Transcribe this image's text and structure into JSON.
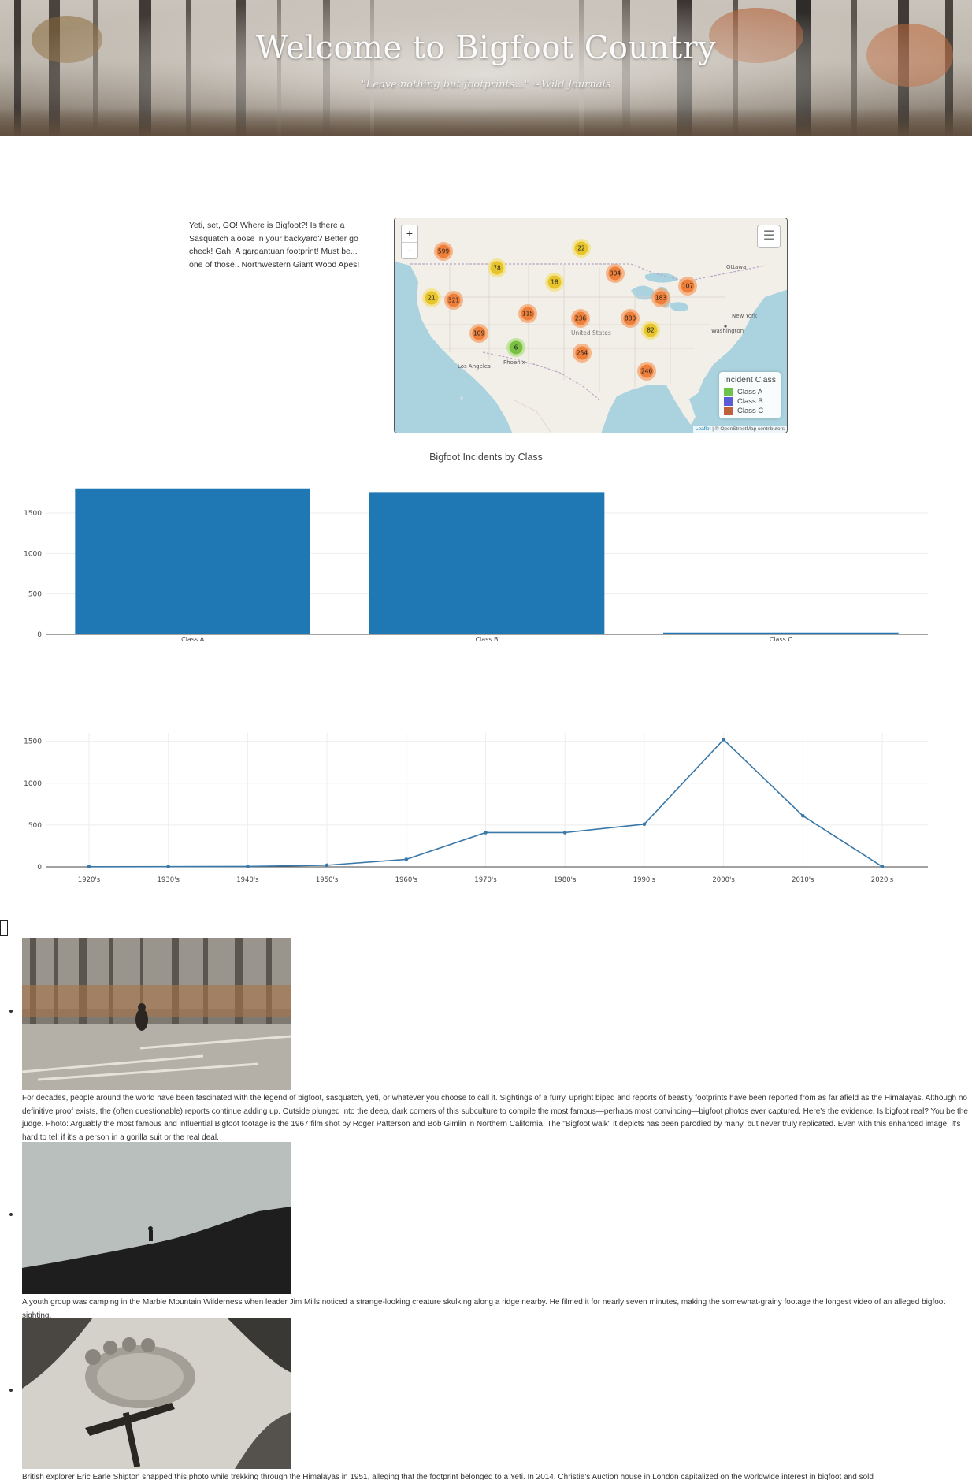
{
  "banner": {
    "title": "Welcome to Bigfoot Country",
    "subtitle": "\"Leave nothing but footprints...\" ~Wild Journals"
  },
  "intro": {
    "text": "Yeti, set, GO! Where is Bigfoot?! Is there a Sasquatch aloose in your backyard? Better go check! Gah! A gargantuan footprint! Must be... one of those.. Northwestern Giant Wood Apes!"
  },
  "map": {
    "zoom_in": "+",
    "zoom_out": "−",
    "layers_icon": "layers-icon",
    "legend": {
      "title": "Incident Class",
      "items": [
        {
          "label": "Class A",
          "color": "#6cc24a"
        },
        {
          "label": "Class B",
          "color": "#5b5bd6"
        },
        {
          "label": "Class C",
          "color": "#c0603a"
        }
      ]
    },
    "attribution_leaflet": "Leaflet",
    "attribution_osm": "| © OpenStreetMap contributors",
    "place_labels": [
      {
        "name": "Ottawa"
      },
      {
        "name": "New York"
      },
      {
        "name": "Washington"
      },
      {
        "name": "United States"
      },
      {
        "name": "Phoenix"
      },
      {
        "name": "Los Angeles"
      }
    ],
    "clusters": [
      {
        "count": "599",
        "level": "orange"
      },
      {
        "count": "22",
        "level": "yellow"
      },
      {
        "count": "78",
        "level": "yellow"
      },
      {
        "count": "304",
        "level": "orange"
      },
      {
        "count": "18",
        "level": "yellow"
      },
      {
        "count": "107",
        "level": "orange"
      },
      {
        "count": "21",
        "level": "yellow"
      },
      {
        "count": "321",
        "level": "orange"
      },
      {
        "count": "183",
        "level": "orange"
      },
      {
        "count": "115",
        "level": "orange"
      },
      {
        "count": "236",
        "level": "orange"
      },
      {
        "count": "880",
        "level": "orange"
      },
      {
        "count": "109",
        "level": "orange"
      },
      {
        "count": "82",
        "level": "yellow"
      },
      {
        "count": "6",
        "level": "green"
      },
      {
        "count": "254",
        "level": "orange"
      },
      {
        "count": "246",
        "level": "orange"
      }
    ]
  },
  "chart_data": [
    {
      "type": "bar",
      "title": "Bigfoot Incidents by Class",
      "categories": [
        "Class A",
        "Class B",
        "Class C"
      ],
      "values": [
        1805,
        1760,
        22
      ],
      "yticks": [
        0,
        500,
        1000,
        1500
      ],
      "ylim": [
        0,
        1900
      ],
      "color": "#1f77b4",
      "grid": true
    },
    {
      "type": "line",
      "title": "",
      "categories": [
        "1920's",
        "1930's",
        "1940's",
        "1950's",
        "1960's",
        "1970's",
        "1980's",
        "1990's",
        "2000's",
        "2010's",
        "2020's"
      ],
      "values": [
        2,
        3,
        5,
        20,
        90,
        410,
        410,
        510,
        1520,
        610,
        3
      ],
      "yticks": [
        0,
        500,
        1000,
        1500
      ],
      "ylim": [
        0,
        1600
      ],
      "color": "#3a78a8",
      "grid": true
    }
  ],
  "gallery": [
    {
      "photo_icon": "bigfoot-film-photo",
      "caption": "For decades, people around the world have been fascinated with the legend of bigfoot, sasquatch, yeti, or whatever you choose to call it. Sightings of a furry, upright biped and reports of beastly footprints have been reported from as far afield as the Himalayas. Although no definitive proof exists, the (often questionable) reports continue adding up. Outside plunged into the deep, dark corners of this subculture to compile the most famous—perhaps most convincing—bigfoot photos ever captured. Here's the evidence. Is bigfoot real? You be the judge. Photo: Arguably the most famous and influential Bigfoot footage is the 1967 film shot by Roger Patterson and Bob Gimlin in Northern California. The \"Bigfoot walk\" it depicts has been parodied by many, but never truly replicated. Even with this enhanced image, it's hard to tell if it's a person in a gorilla suit or the real deal."
    },
    {
      "photo_icon": "ridge-silhouette-photo",
      "caption": "A youth group was camping in the Marble Mountain Wilderness when leader Jim Mills noticed a strange-looking creature skulking along a ridge nearby. He filmed it for nearly seven minutes, making the somewhat-grainy footage the longest video of an alleged bigfoot sighting."
    },
    {
      "photo_icon": "snow-footprint-photo",
      "caption": "British explorer Eric Earle Shipton snapped this photo while trekking through the Himalayas in 1951, alleging that the footprint belonged to a Yeti. In 2014, Christie's Auction house in London capitalized on the worldwide interest in bigfoot and sold"
    }
  ]
}
